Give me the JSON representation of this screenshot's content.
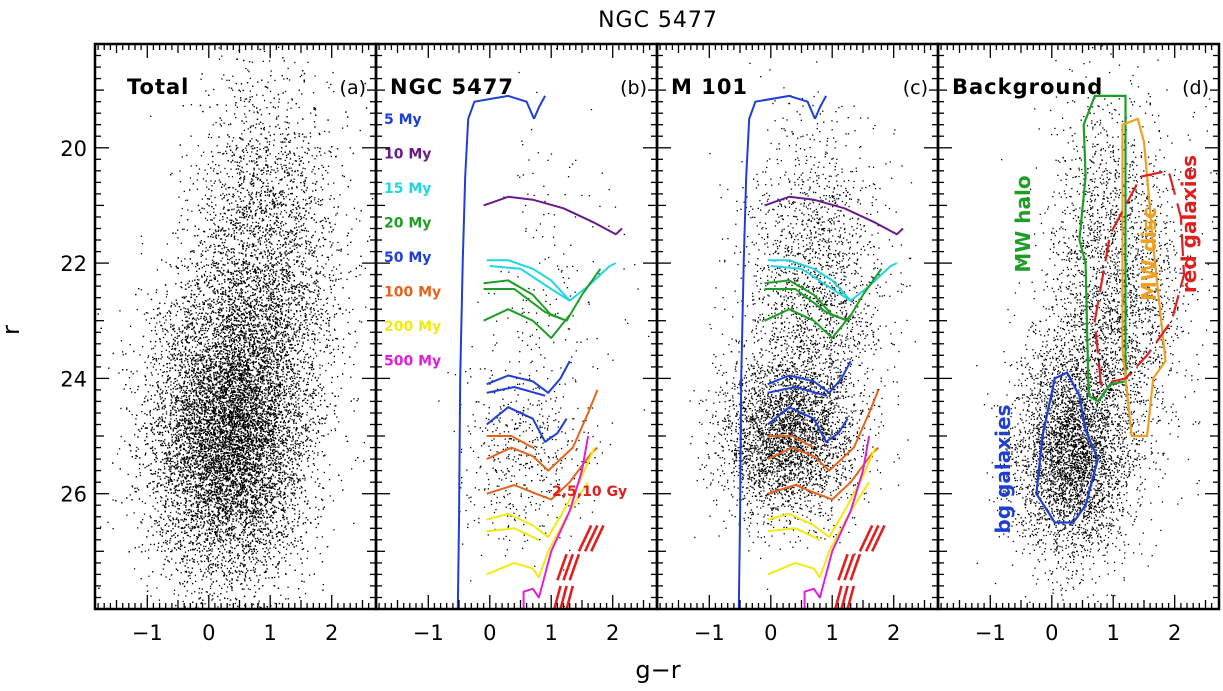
{
  "chart_data": {
    "type": "scatter",
    "title": "NGC 5477",
    "xlabel": "g−r",
    "ylabel": "r",
    "xlim": [
      -1.85,
      2.72
    ],
    "ylim": [
      28.0,
      18.2
    ],
    "y_inverted": true,
    "x_ticks": [
      -1,
      0,
      1,
      2
    ],
    "x_tick_labels": [
      "−1",
      "0",
      "1",
      "2"
    ],
    "y_ticks": [
      20,
      22,
      24,
      26
    ],
    "y_tick_labels": [
      "20",
      "22",
      "24",
      "26"
    ],
    "panels": [
      {
        "name": "Total",
        "letter": "(a)",
        "points": {
          "n": 16000,
          "density": [
            {
              "cx": 0.3,
              "sx": 0.62,
              "cy": 25.0,
              "sy": 1.25,
              "w": 0.7
            },
            {
              "cx": 0.9,
              "sx": 0.6,
              "cy": 22.2,
              "sy": 1.6,
              "w": 0.3
            }
          ]
        }
      },
      {
        "name": "NGC 5477",
        "letter": "(b)",
        "points": {
          "n": 650,
          "density": [
            {
              "cx": 0.5,
              "sx": 0.5,
              "cy": 25.3,
              "sy": 0.8,
              "w": 0.75
            },
            {
              "cx": 1.0,
              "sx": 0.6,
              "cy": 22.5,
              "sy": 1.5,
              "w": 0.25
            }
          ]
        },
        "legend": [
          {
            "label": "5 My",
            "color": "#1f3fd4"
          },
          {
            "label": "10 My",
            "color": "#6a1b8a"
          },
          {
            "label": "15 My",
            "color": "#22d6e0"
          },
          {
            "label": "20 My",
            "color": "#1f9e27"
          },
          {
            "label": "50 My",
            "color": "#1f3fd4"
          },
          {
            "label": "100 My",
            "color": "#e5641a"
          },
          {
            "label": "200 My",
            "color": "#f2ea10"
          },
          {
            "label": "500 My",
            "color": "#e020d8"
          }
        ],
        "old_isochrone_label": "2,5,10 Gy"
      },
      {
        "name": "M 101",
        "letter": "(c)",
        "points": {
          "n": 5200,
          "density": [
            {
              "cx": 0.25,
              "sx": 0.55,
              "cy": 25.0,
              "sy": 0.7,
              "w": 0.6
            },
            {
              "cx": 0.7,
              "sx": 0.55,
              "cy": 22.5,
              "sy": 1.4,
              "w": 0.4
            }
          ]
        },
        "old_isochrone_label": ""
      },
      {
        "name": "Background",
        "letter": "(d)",
        "points": {
          "n": 6500,
          "density": [
            {
              "cx": 0.3,
              "sx": 0.45,
              "cy": 25.3,
              "sy": 0.9,
              "w": 0.55
            },
            {
              "cx": 1.0,
              "sx": 0.55,
              "cy": 22.6,
              "sy": 1.6,
              "w": 0.45
            }
          ]
        },
        "regions": [
          {
            "label": "MW halo",
            "color": "#1f9e27",
            "style": "solid"
          },
          {
            "label": "MW disc",
            "color": "#f0a020",
            "style": "solid"
          },
          {
            "label": "red galaxies",
            "color": "#e02020",
            "style": "dashed"
          },
          {
            "label": "bg galaxies",
            "color": "#1f3fd4",
            "style": "solid"
          }
        ]
      }
    ],
    "isochrones": [
      {
        "age": "5 My",
        "color": "#1f3fd4",
        "ms": [
          [
            -0.52,
            28.0
          ],
          [
            -0.5,
            26.5
          ],
          [
            -0.48,
            24.0
          ],
          [
            -0.44,
            22.0
          ],
          [
            -0.4,
            20.5
          ],
          [
            -0.35,
            19.5
          ],
          [
            -0.25,
            19.2
          ],
          [
            0.3,
            19.1
          ],
          [
            0.6,
            19.2
          ],
          [
            0.72,
            19.5
          ]
        ],
        "hook": [
          [
            0.72,
            19.5
          ],
          [
            0.8,
            19.3
          ],
          [
            0.9,
            19.1
          ]
        ],
        "rsg": []
      },
      {
        "age": "10 My",
        "color": "#6a1b8a",
        "ms": [
          [
            -0.1,
            21.0
          ],
          [
            0.3,
            20.85
          ],
          [
            0.7,
            20.9
          ],
          [
            1.2,
            21.05
          ],
          [
            1.7,
            21.3
          ],
          [
            2.05,
            21.5
          ],
          [
            2.15,
            21.4
          ]
        ],
        "hook": [],
        "rsg": []
      },
      {
        "age": "15 My",
        "color": "#22d6e0",
        "ms": [
          [
            -0.05,
            21.95
          ],
          [
            0.3,
            21.95
          ],
          [
            0.7,
            22.1
          ],
          [
            1.0,
            22.3
          ],
          [
            1.3,
            22.65
          ],
          [
            1.6,
            22.4
          ],
          [
            1.95,
            22.05
          ],
          [
            2.05,
            22.0
          ]
        ],
        "hook": [
          [
            0.0,
            22.05
          ],
          [
            0.5,
            22.1
          ],
          [
            1.0,
            22.45
          ],
          [
            1.3,
            22.65
          ]
        ],
        "rsg": []
      },
      {
        "age": "20 My",
        "color": "#1f9e27",
        "ms": [
          [
            -0.1,
            22.35
          ],
          [
            0.3,
            22.3
          ],
          [
            0.7,
            22.55
          ],
          [
            1.0,
            22.9
          ],
          [
            1.25,
            23.0
          ],
          [
            1.5,
            22.55
          ],
          [
            1.8,
            22.1
          ]
        ],
        "hook": [
          [
            -0.1,
            22.45
          ],
          [
            0.4,
            22.45
          ],
          [
            0.9,
            22.85
          ],
          [
            1.25,
            23.0
          ]
        ],
        "rsg": [
          [
            -0.1,
            23.0
          ],
          [
            0.3,
            22.8
          ],
          [
            0.7,
            23.0
          ],
          [
            1.0,
            23.3
          ],
          [
            1.3,
            22.9
          ]
        ]
      },
      {
        "age": "50 My",
        "color": "#1f3fd4",
        "ms": [
          [
            -0.05,
            24.1
          ],
          [
            0.3,
            23.95
          ],
          [
            0.7,
            24.05
          ],
          [
            0.95,
            24.25
          ],
          [
            1.15,
            24.0
          ],
          [
            1.3,
            23.7
          ]
        ],
        "hook": [
          [
            -0.05,
            24.25
          ],
          [
            0.4,
            24.15
          ],
          [
            0.9,
            24.3
          ]
        ],
        "rsg": [
          [
            -0.05,
            24.8
          ],
          [
            0.3,
            24.5
          ],
          [
            0.7,
            24.7
          ],
          [
            0.9,
            25.1
          ],
          [
            1.1,
            24.95
          ],
          [
            1.25,
            24.7
          ]
        ]
      },
      {
        "age": "100 My",
        "color": "#e5641a",
        "ms": [
          [
            -0.05,
            25.4
          ],
          [
            0.35,
            25.2
          ],
          [
            0.7,
            25.35
          ],
          [
            0.95,
            25.6
          ],
          [
            1.35,
            25.2
          ],
          [
            1.6,
            24.6
          ],
          [
            1.75,
            24.2
          ]
        ],
        "hook": [
          [
            -0.05,
            25.0
          ],
          [
            0.35,
            25.0
          ],
          [
            0.7,
            25.2
          ]
        ],
        "rsg": [
          [
            -0.05,
            26.0
          ],
          [
            0.4,
            25.85
          ],
          [
            0.75,
            26.0
          ],
          [
            1.0,
            26.1
          ],
          [
            1.3,
            25.8
          ],
          [
            1.65,
            25.3
          ],
          [
            1.75,
            25.2
          ]
        ]
      },
      {
        "age": "200 My",
        "color": "#f2ea10",
        "ms": [
          [
            -0.05,
            26.45
          ],
          [
            0.3,
            26.35
          ],
          [
            0.7,
            26.55
          ],
          [
            0.95,
            26.75
          ],
          [
            1.2,
            26.3
          ],
          [
            1.5,
            25.7
          ],
          [
            1.7,
            25.2
          ]
        ],
        "hook": [
          [
            -0.05,
            26.65
          ],
          [
            0.4,
            26.6
          ],
          [
            0.8,
            26.8
          ]
        ],
        "rsg": [
          [
            -0.05,
            27.4
          ],
          [
            0.4,
            27.2
          ],
          [
            0.7,
            27.3
          ],
          [
            0.8,
            27.45
          ],
          [
            0.95,
            27.0
          ],
          [
            1.3,
            26.3
          ],
          [
            1.6,
            25.8
          ]
        ]
      },
      {
        "age": "500 My",
        "color": "#e020d8",
        "ms": [
          [
            0.55,
            28.0
          ],
          [
            0.55,
            27.7
          ],
          [
            0.7,
            27.65
          ],
          [
            0.8,
            27.8
          ],
          [
            0.9,
            27.4
          ],
          [
            1.0,
            27.0
          ],
          [
            1.3,
            26.3
          ],
          [
            1.5,
            25.6
          ],
          [
            1.6,
            25.0
          ]
        ],
        "hook": [],
        "rsg": []
      }
    ],
    "old_isochrones": {
      "color": "#e02020",
      "lines": [
        [
          [
            1.05,
            28.0
          ],
          [
            1.15,
            27.6
          ]
        ],
        [
          [
            1.15,
            28.0
          ],
          [
            1.25,
            27.6
          ]
        ],
        [
          [
            1.25,
            28.0
          ],
          [
            1.35,
            27.6
          ]
        ],
        [
          [
            1.1,
            27.5
          ],
          [
            1.25,
            27.05
          ]
        ],
        [
          [
            1.2,
            27.5
          ],
          [
            1.35,
            27.05
          ]
        ],
        [
          [
            1.3,
            27.5
          ],
          [
            1.45,
            27.05
          ]
        ],
        [
          [
            1.45,
            27.0
          ],
          [
            1.65,
            26.55
          ]
        ],
        [
          [
            1.55,
            27.0
          ],
          [
            1.75,
            26.55
          ]
        ],
        [
          [
            1.65,
            27.0
          ],
          [
            1.85,
            26.55
          ]
        ]
      ]
    },
    "regions_geometry": {
      "MW halo": [
        [
          0.7,
          19.1
        ],
        [
          1.2,
          19.1
        ],
        [
          1.2,
          24.05
        ],
        [
          0.95,
          24.1
        ],
        [
          0.75,
          24.4
        ],
        [
          0.6,
          24.3
        ],
        [
          0.55,
          22.0
        ],
        [
          0.45,
          21.6
        ],
        [
          0.55,
          20.5
        ],
        [
          0.52,
          19.6
        ]
      ],
      "MW disc": [
        [
          1.15,
          19.6
        ],
        [
          1.4,
          19.5
        ],
        [
          1.5,
          19.9
        ],
        [
          1.65,
          21.7
        ],
        [
          1.85,
          23.7
        ],
        [
          1.65,
          24.0
        ],
        [
          1.55,
          25.0
        ],
        [
          1.3,
          25.0
        ],
        [
          1.15,
          23.5
        ]
      ],
      "red galaxies": [
        [
          0.8,
          24.1
        ],
        [
          0.7,
          23.0
        ],
        [
          0.95,
          21.5
        ],
        [
          1.45,
          20.5
        ],
        [
          1.9,
          20.4
        ],
        [
          2.1,
          21.2
        ],
        [
          2.15,
          22.2
        ],
        [
          1.95,
          23.0
        ],
        [
          1.55,
          23.6
        ],
        [
          1.2,
          24.0
        ]
      ],
      "bg galaxies": [
        [
          0.05,
          26.5
        ],
        [
          -0.25,
          26.0
        ],
        [
          -0.15,
          25.0
        ],
        [
          0.05,
          24.0
        ],
        [
          0.25,
          23.9
        ],
        [
          0.45,
          24.3
        ],
        [
          0.55,
          24.9
        ],
        [
          0.75,
          25.4
        ],
        [
          0.55,
          26.2
        ],
        [
          0.35,
          26.5
        ]
      ]
    }
  }
}
